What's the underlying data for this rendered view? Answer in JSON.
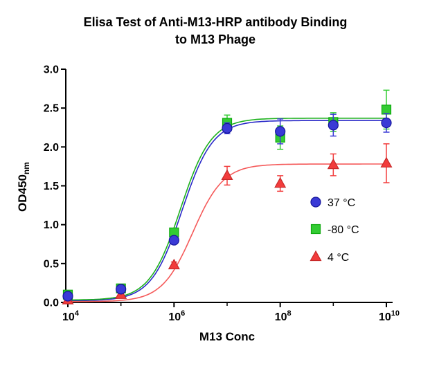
{
  "chart_data": {
    "type": "scatter",
    "title": "Elisa Test of Anti-M13-HRP antibody Binding to M13 Phage",
    "title_lines": [
      "Elisa Test of Anti-M13-HRP antibody Binding",
      "to M13 Phage"
    ],
    "xlabel": "M13 Conc",
    "ylabel": "OD450nm",
    "ylabel_main": "OD450",
    "ylabel_sub": "nm",
    "x_scale": "log10",
    "x_tick_base": "10",
    "x_range_exponents": [
      4,
      10
    ],
    "x_major_tick_exponents": [
      4,
      6,
      8,
      10
    ],
    "x_minor_tick_exponents": [
      5,
      7,
      9
    ],
    "y_range": [
      0,
      3
    ],
    "y_ticks": [
      0.0,
      0.5,
      1.0,
      1.5,
      2.0,
      2.5,
      3.0
    ],
    "grid": false,
    "legend_position": "inside-right",
    "axis_color": "#000000",
    "x_exponents": [
      4,
      5,
      6,
      7,
      8,
      9,
      10
    ],
    "series": [
      {
        "name": "37 °C",
        "marker": "circle",
        "color": "#3a3ad6",
        "edge_color": "#15159b",
        "line_color": "#2929c8",
        "values": [
          0.08,
          0.17,
          0.8,
          2.24,
          2.2,
          2.28,
          2.31
        ],
        "errors": [
          0.05,
          0.02,
          0.04,
          0.07,
          0.16,
          0.14,
          0.12
        ],
        "fit": {
          "model": "4PL",
          "bottom": 0.02,
          "top": 2.34,
          "logec50": 6.15,
          "hill": 1.5
        }
      },
      {
        "name": "-80 °C",
        "marker": "square",
        "color": "#33cc33",
        "edge_color": "#0da80d",
        "line_color": "#1db11d",
        "values": [
          0.1,
          0.18,
          0.9,
          2.31,
          2.12,
          2.32,
          2.48
        ],
        "errors": [
          0.04,
          0.02,
          0.05,
          0.1,
          0.15,
          0.12,
          0.25
        ],
        "fit": {
          "model": "4PL",
          "bottom": 0.03,
          "top": 2.37,
          "logec50": 6.12,
          "hill": 1.5
        }
      },
      {
        "name": "4 °C",
        "marker": "triangle",
        "color": "#f23c3c",
        "edge_color": "#c62828",
        "line_color": "#f55a5a",
        "values": [
          0.03,
          0.1,
          0.48,
          1.63,
          1.53,
          1.77,
          1.79
        ],
        "errors": [
          0.02,
          0.02,
          0.04,
          0.12,
          0.1,
          0.14,
          0.25
        ],
        "fit": {
          "model": "4PL",
          "bottom": 0.01,
          "top": 1.78,
          "logec50": 6.35,
          "hill": 1.5
        }
      }
    ]
  }
}
